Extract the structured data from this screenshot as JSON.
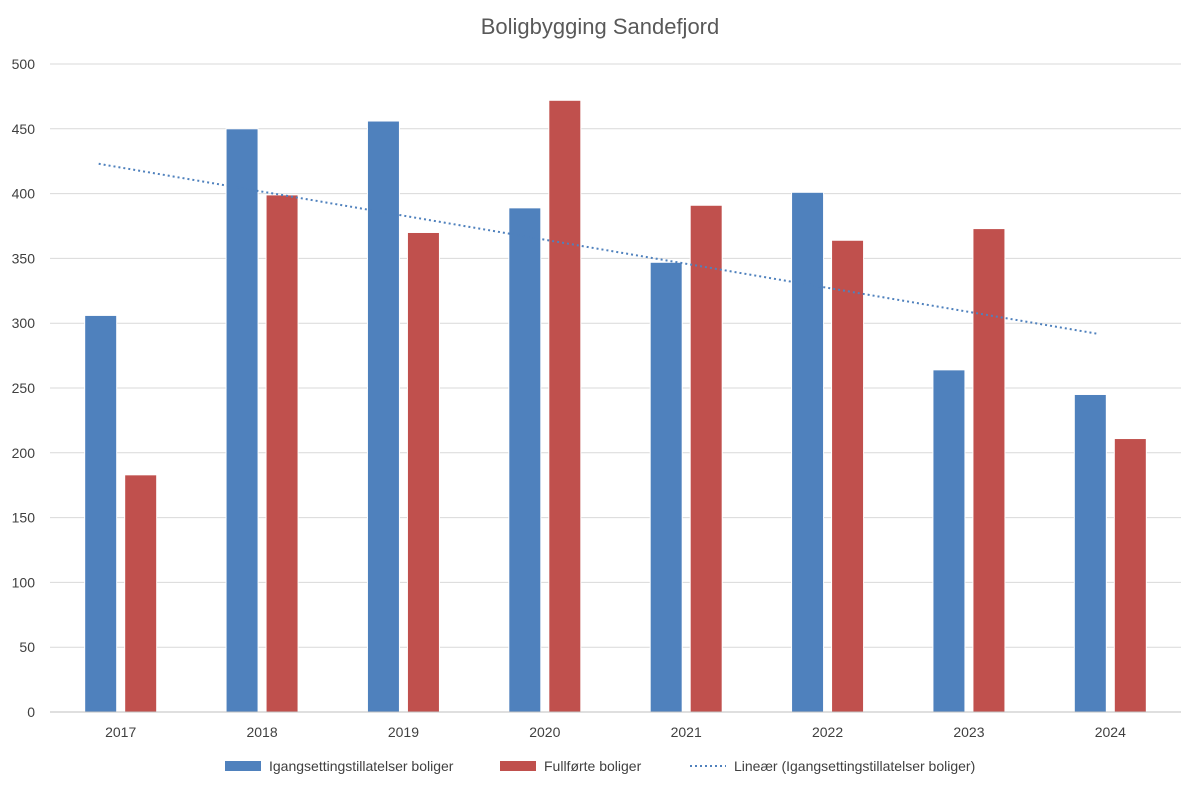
{
  "chart_data": {
    "type": "bar",
    "title": "Boligbygging Sandefjord",
    "categories": [
      "2017",
      "2018",
      "2019",
      "2020",
      "2021",
      "2022",
      "2023",
      "2024"
    ],
    "series": [
      {
        "name": "Igangsettingstillatelser boliger",
        "color": "#4F81BD",
        "values": [
          306,
          450,
          456,
          389,
          347,
          401,
          264,
          245
        ]
      },
      {
        "name": "Fullførte boliger",
        "color": "#C0504D",
        "values": [
          183,
          399,
          370,
          472,
          391,
          364,
          373,
          211
        ]
      }
    ],
    "trendline": {
      "name": "Lineær (Igangsettingstillatelser boliger)",
      "type": "linear",
      "of_series": "Igangsettingstillatelser boliger",
      "color": "#4F81BD",
      "style": "dotted",
      "start_value": 423,
      "end_value": 292
    },
    "ylim": [
      0,
      500
    ],
    "yticks": [
      0,
      50,
      100,
      150,
      200,
      250,
      300,
      350,
      400,
      450,
      500
    ],
    "xlabel": "",
    "ylabel": "",
    "grid": true,
    "legend_position": "bottom"
  }
}
